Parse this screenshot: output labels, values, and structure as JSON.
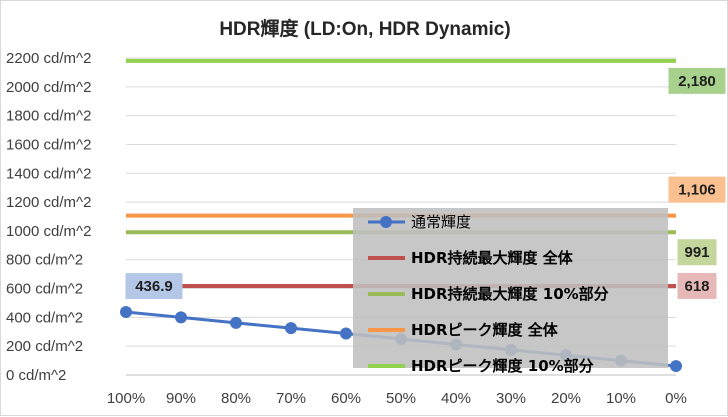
{
  "chart_data": {
    "type": "line",
    "title": "HDR輝度 (LD:On, HDR Dynamic)",
    "ylabel_suffix": " cd/m^2",
    "ylim": [
      0,
      2200
    ],
    "yticks": [
      0,
      200,
      400,
      600,
      800,
      1000,
      1200,
      1400,
      1600,
      1800,
      2000,
      2200
    ],
    "categories": [
      "100%",
      "90%",
      "80%",
      "70%",
      "60%",
      "50%",
      "40%",
      "30%",
      "20%",
      "10%",
      "0%"
    ],
    "grid": true,
    "legend_position": "bottom-right",
    "series": [
      {
        "name": "通常輝度",
        "kind": "markers",
        "color": "#4472c4",
        "values": [
          436.9,
          400,
          362,
          325,
          288,
          250,
          212,
          175,
          137,
          100,
          62
        ],
        "label_value": "436.9"
      },
      {
        "name": "HDR持続最大輝度 全体",
        "kind": "hline",
        "color": "#c0504d",
        "values": [
          618,
          618,
          618,
          618,
          618,
          618,
          618,
          618,
          618,
          618,
          618
        ],
        "label_value": "618"
      },
      {
        "name": "HDR持続最大輝度 10%部分",
        "kind": "hline",
        "color": "#9bbb59",
        "values": [
          991,
          991,
          991,
          991,
          991,
          991,
          991,
          991,
          991,
          991,
          991
        ],
        "label_value": "991"
      },
      {
        "name": "HDRピーク輝度 全体",
        "kind": "hline",
        "color": "#f79646",
        "values": [
          1106,
          1106,
          1106,
          1106,
          1106,
          1106,
          1106,
          1106,
          1106,
          1106,
          1106
        ],
        "label_value": "1,106"
      },
      {
        "name": "HDRピーク輝度 10%部分",
        "kind": "hline",
        "color": "#92d050",
        "values": [
          2180,
          2180,
          2180,
          2180,
          2180,
          2180,
          2180,
          2180,
          2180,
          2180,
          2180
        ],
        "label_value": "2,180"
      }
    ]
  }
}
